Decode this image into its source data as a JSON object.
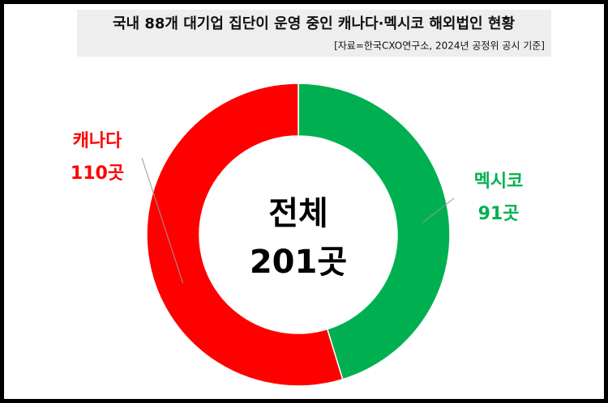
{
  "chart_data": {
    "type": "donut",
    "title": "국내 88개 대기업 집단이 운영 중인 캐나다·멕시코 해외법인 현황",
    "subtitle": "[자료=한국CXO연구소, 2024년 공정위 공시 기준]",
    "center_text": [
      "전체",
      "201곳"
    ],
    "categories": [
      "캐나다",
      "멕시코"
    ],
    "values": [
      110,
      91
    ],
    "value_labels": [
      "110곳",
      "91곳"
    ],
    "colors": [
      "#ff0000",
      "#00b050"
    ]
  }
}
